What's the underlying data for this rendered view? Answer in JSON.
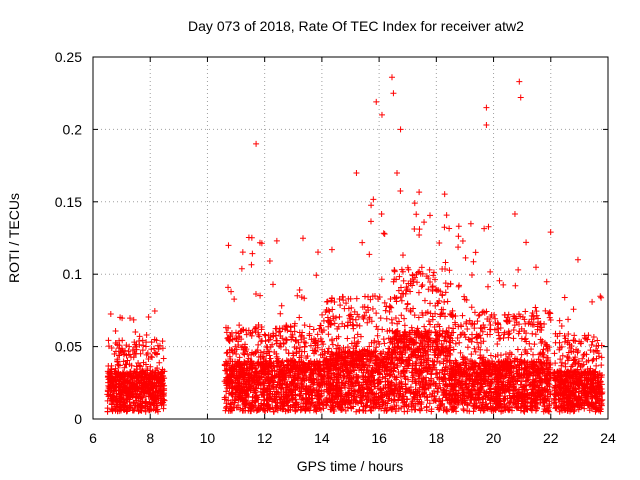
{
  "chart_data": {
    "type": "scatter",
    "title": "Day 073 of 2018, Rate Of TEC Index for receiver atw2",
    "xlabel": "GPS time / hours",
    "ylabel": "ROTI / TECUs",
    "xlim": [
      6,
      24
    ],
    "ylim": [
      0,
      0.25
    ],
    "x_ticks": [
      6,
      8,
      10,
      12,
      14,
      16,
      18,
      20,
      22,
      24
    ],
    "x_tick_labels": [
      "6",
      "8",
      "10",
      "12",
      "14",
      "16",
      "18",
      "20",
      "22",
      "24"
    ],
    "y_ticks": [
      0,
      0.05,
      0.1,
      0.15,
      0.2,
      0.25
    ],
    "y_tick_labels": [
      "0",
      "0.05",
      "0.1",
      "0.15",
      "0.2",
      "0.25"
    ],
    "grid": true,
    "marker": "+",
    "color": "#ff0000",
    "notable_points": [
      {
        "x": 11.7,
        "y": 0.19
      },
      {
        "x": 15.9,
        "y": 0.219
      },
      {
        "x": 16.1,
        "y": 0.21
      },
      {
        "x": 16.45,
        "y": 0.236
      },
      {
        "x": 16.5,
        "y": 0.225
      },
      {
        "x": 16.75,
        "y": 0.2
      },
      {
        "x": 19.75,
        "y": 0.215
      },
      {
        "x": 19.75,
        "y": 0.203
      },
      {
        "x": 20.9,
        "y": 0.233
      },
      {
        "x": 20.95,
        "y": 0.222
      },
      {
        "x": 22.95,
        "y": 0.11
      }
    ],
    "segments": [
      {
        "x_start": 6.5,
        "x_end": 8.5,
        "typical": 0.02,
        "spread": 0.03,
        "peak": 0.075
      },
      {
        "x_start": 10.6,
        "x_end": 14.0,
        "typical": 0.025,
        "spread": 0.035,
        "peak": 0.13
      },
      {
        "x_start": 14.0,
        "x_end": 16.5,
        "typical": 0.03,
        "spread": 0.05,
        "peak": 0.17
      },
      {
        "x_start": 16.5,
        "x_end": 18.5,
        "typical": 0.04,
        "spread": 0.06,
        "peak": 0.17
      },
      {
        "x_start": 18.5,
        "x_end": 22.0,
        "typical": 0.025,
        "spread": 0.045,
        "peak": 0.145
      },
      {
        "x_start": 22.1,
        "x_end": 23.8,
        "typical": 0.02,
        "spread": 0.035,
        "peak": 0.085
      }
    ]
  }
}
